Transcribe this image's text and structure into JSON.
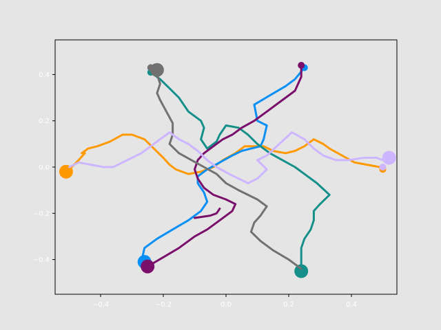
{
  "chart_data": {
    "type": "line",
    "title": "",
    "xlabel": "",
    "ylabel": "",
    "xlim": [
      -0.545,
      0.545
    ],
    "ylim": [
      -0.55,
      0.55
    ],
    "grid": false,
    "x_ticks": [
      -0.4,
      -0.2,
      0.0,
      0.2,
      0.4
    ],
    "y_ticks": [
      -0.4,
      -0.2,
      0.0,
      0.2,
      0.4
    ],
    "x_tick_labels": [
      "−0.4",
      "−0.2",
      "0.0",
      "0.2",
      "0.4"
    ],
    "y_tick_labels": [
      "−0.4",
      "−0.2",
      "0.0",
      "0.2",
      "0.4"
    ],
    "background": "#e5e5e5",
    "plot_face": "#e5e5e5",
    "series": [
      {
        "color": "#ff9900",
        "points": [
          [
            -0.5,
            -0.01
          ],
          [
            -0.47,
            0.03
          ],
          [
            -0.45,
            0.06
          ],
          [
            -0.46,
            0.06
          ],
          [
            -0.44,
            0.08
          ],
          [
            -0.41,
            0.09
          ],
          [
            -0.37,
            0.11
          ],
          [
            -0.33,
            0.14
          ],
          [
            -0.3,
            0.14
          ],
          [
            -0.26,
            0.12
          ],
          [
            -0.23,
            0.08
          ],
          [
            -0.2,
            0.04
          ],
          [
            -0.18,
            0.01
          ],
          [
            -0.16,
            -0.01
          ],
          [
            -0.12,
            -0.03
          ],
          [
            -0.08,
            -0.02
          ],
          [
            -0.04,
            0.0
          ],
          [
            -0.01,
            0.03
          ],
          [
            0.03,
            0.06
          ],
          [
            0.06,
            0.09
          ],
          [
            0.09,
            0.09
          ],
          [
            0.12,
            0.09
          ],
          [
            0.15,
            0.07
          ],
          [
            0.19,
            0.06
          ],
          [
            0.22,
            0.07
          ],
          [
            0.25,
            0.09
          ],
          [
            0.28,
            0.12
          ],
          [
            0.31,
            0.1
          ],
          [
            0.33,
            0.08
          ],
          [
            0.37,
            0.05
          ],
          [
            0.41,
            0.02
          ],
          [
            0.45,
            0.01
          ],
          [
            0.49,
            0.0
          ],
          [
            0.5,
            -0.01
          ]
        ],
        "start": [
          0.5,
          -0.01
        ],
        "end": [
          -0.51,
          -0.02
        ]
      },
      {
        "color": "#0a8ff5",
        "points": [
          [
            -0.27,
            -0.41
          ],
          [
            -0.26,
            -0.35
          ],
          [
            -0.22,
            -0.31
          ],
          [
            -0.17,
            -0.27
          ],
          [
            -0.12,
            -0.23
          ],
          [
            -0.08,
            -0.19
          ],
          [
            -0.06,
            -0.15
          ],
          [
            -0.07,
            -0.11
          ],
          [
            -0.09,
            -0.07
          ],
          [
            -0.09,
            -0.04
          ],
          [
            -0.06,
            -0.01
          ],
          [
            -0.02,
            0.02
          ],
          [
            0.02,
            0.05
          ],
          [
            0.05,
            0.07
          ],
          [
            0.08,
            0.08
          ],
          [
            0.11,
            0.09
          ],
          [
            0.12,
            0.12
          ],
          [
            0.13,
            0.18
          ],
          [
            0.1,
            0.2
          ],
          [
            0.09,
            0.27
          ],
          [
            0.14,
            0.31
          ],
          [
            0.19,
            0.35
          ],
          [
            0.22,
            0.38
          ],
          [
            0.25,
            0.43
          ]
        ],
        "start": [
          0.25,
          0.43
        ],
        "end": [
          -0.26,
          -0.41
        ]
      },
      {
        "color": "#148f8a",
        "points": [
          [
            0.24,
            -0.44
          ],
          [
            0.24,
            -0.39
          ],
          [
            0.24,
            -0.35
          ],
          [
            0.25,
            -0.31
          ],
          [
            0.27,
            -0.27
          ],
          [
            0.28,
            -0.23
          ],
          [
            0.28,
            -0.19
          ],
          [
            0.3,
            -0.16
          ],
          [
            0.33,
            -0.12
          ],
          [
            0.29,
            -0.07
          ],
          [
            0.25,
            -0.03
          ],
          [
            0.22,
            0.0
          ],
          [
            0.18,
            0.03
          ],
          [
            0.14,
            0.06
          ],
          [
            0.1,
            0.1
          ],
          [
            0.07,
            0.14
          ],
          [
            0.04,
            0.17
          ],
          [
            0.0,
            0.18
          ],
          [
            -0.02,
            0.14
          ],
          [
            -0.03,
            0.11
          ],
          [
            -0.06,
            0.08
          ],
          [
            -0.08,
            0.12
          ],
          [
            -0.07,
            0.17
          ],
          [
            -0.08,
            0.2
          ],
          [
            -0.12,
            0.24
          ],
          [
            -0.15,
            0.3
          ],
          [
            -0.18,
            0.34
          ],
          [
            -0.21,
            0.38
          ],
          [
            -0.24,
            0.41
          ]
        ],
        "start": [
          -0.24,
          0.41
        ],
        "end": [
          0.24,
          -0.45
        ]
      },
      {
        "color": "#7a0f6b",
        "points": [
          [
            -0.25,
            -0.43
          ],
          [
            -0.2,
            -0.39
          ],
          [
            -0.15,
            -0.35
          ],
          [
            -0.1,
            -0.3
          ],
          [
            -0.06,
            -0.27
          ],
          [
            -0.02,
            -0.23
          ],
          [
            0.02,
            -0.19
          ],
          [
            0.03,
            -0.16
          ],
          [
            0.0,
            -0.14
          ],
          [
            -0.04,
            -0.12
          ],
          [
            -0.07,
            -0.09
          ],
          [
            -0.09,
            -0.05
          ],
          [
            -0.1,
            -0.01
          ],
          [
            -0.09,
            0.03
          ],
          [
            -0.07,
            0.06
          ],
          [
            -0.04,
            0.09
          ],
          [
            -0.01,
            0.12
          ],
          [
            0.02,
            0.14
          ],
          [
            0.05,
            0.17
          ],
          [
            0.09,
            0.2
          ],
          [
            0.13,
            0.24
          ],
          [
            0.18,
            0.29
          ],
          [
            0.22,
            0.33
          ],
          [
            0.24,
            0.39
          ],
          [
            0.24,
            0.44
          ]
        ],
        "extra": [
          [
            -0.1,
            -0.22
          ],
          [
            -0.05,
            -0.21
          ],
          [
            -0.03,
            -0.2
          ],
          [
            -0.02,
            -0.18
          ]
        ],
        "start": [
          0.24,
          0.44
        ],
        "end": [
          -0.25,
          -0.43
        ]
      },
      {
        "color": "#717171",
        "points": [
          [
            0.24,
            -0.44
          ],
          [
            0.2,
            -0.4
          ],
          [
            0.15,
            -0.36
          ],
          [
            0.11,
            -0.32
          ],
          [
            0.08,
            -0.28
          ],
          [
            0.09,
            -0.24
          ],
          [
            0.11,
            -0.21
          ],
          [
            0.13,
            -0.17
          ],
          [
            0.1,
            -0.14
          ],
          [
            0.07,
            -0.12
          ],
          [
            0.04,
            -0.1
          ],
          [
            0.0,
            -0.07
          ],
          [
            -0.03,
            -0.03
          ],
          [
            -0.07,
            0.0
          ],
          [
            -0.11,
            0.03
          ],
          [
            -0.15,
            0.06
          ],
          [
            -0.18,
            0.1
          ],
          [
            -0.17,
            0.14
          ],
          [
            -0.17,
            0.19
          ],
          [
            -0.19,
            0.24
          ],
          [
            -0.21,
            0.29
          ],
          [
            -0.22,
            0.32
          ],
          [
            -0.21,
            0.36
          ],
          [
            -0.22,
            0.4
          ],
          [
            -0.24,
            0.43
          ]
        ],
        "start": [
          -0.24,
          0.43
        ],
        "end": [
          -0.22,
          0.42
        ]
      },
      {
        "color": "#cdb5ff",
        "points": [
          [
            -0.5,
            0.0
          ],
          [
            -0.47,
            0.02
          ],
          [
            -0.43,
            0.01
          ],
          [
            -0.39,
            0.0
          ],
          [
            -0.36,
            0.0
          ],
          [
            -0.33,
            0.02
          ],
          [
            -0.3,
            0.04
          ],
          [
            -0.27,
            0.06
          ],
          [
            -0.24,
            0.09
          ],
          [
            -0.21,
            0.12
          ],
          [
            -0.18,
            0.15
          ],
          [
            -0.15,
            0.12
          ],
          [
            -0.12,
            0.1
          ],
          [
            -0.09,
            0.07
          ],
          [
            -0.06,
            0.03
          ],
          [
            -0.03,
            0.0
          ],
          [
            0.01,
            -0.03
          ],
          [
            0.04,
            -0.05
          ],
          [
            0.07,
            -0.07
          ],
          [
            0.1,
            -0.05
          ],
          [
            0.13,
            -0.01
          ],
          [
            0.1,
            0.03
          ],
          [
            0.13,
            0.05
          ],
          [
            0.17,
            0.1
          ],
          [
            0.21,
            0.15
          ],
          [
            0.25,
            0.12
          ],
          [
            0.28,
            0.08
          ],
          [
            0.31,
            0.05
          ],
          [
            0.35,
            0.03
          ],
          [
            0.39,
            0.03
          ],
          [
            0.44,
            0.04
          ],
          [
            0.48,
            0.04
          ],
          [
            0.5,
            0.03
          ]
        ],
        "start": [
          0.5,
          0.0
        ],
        "end": [
          0.52,
          0.04
        ]
      }
    ]
  }
}
